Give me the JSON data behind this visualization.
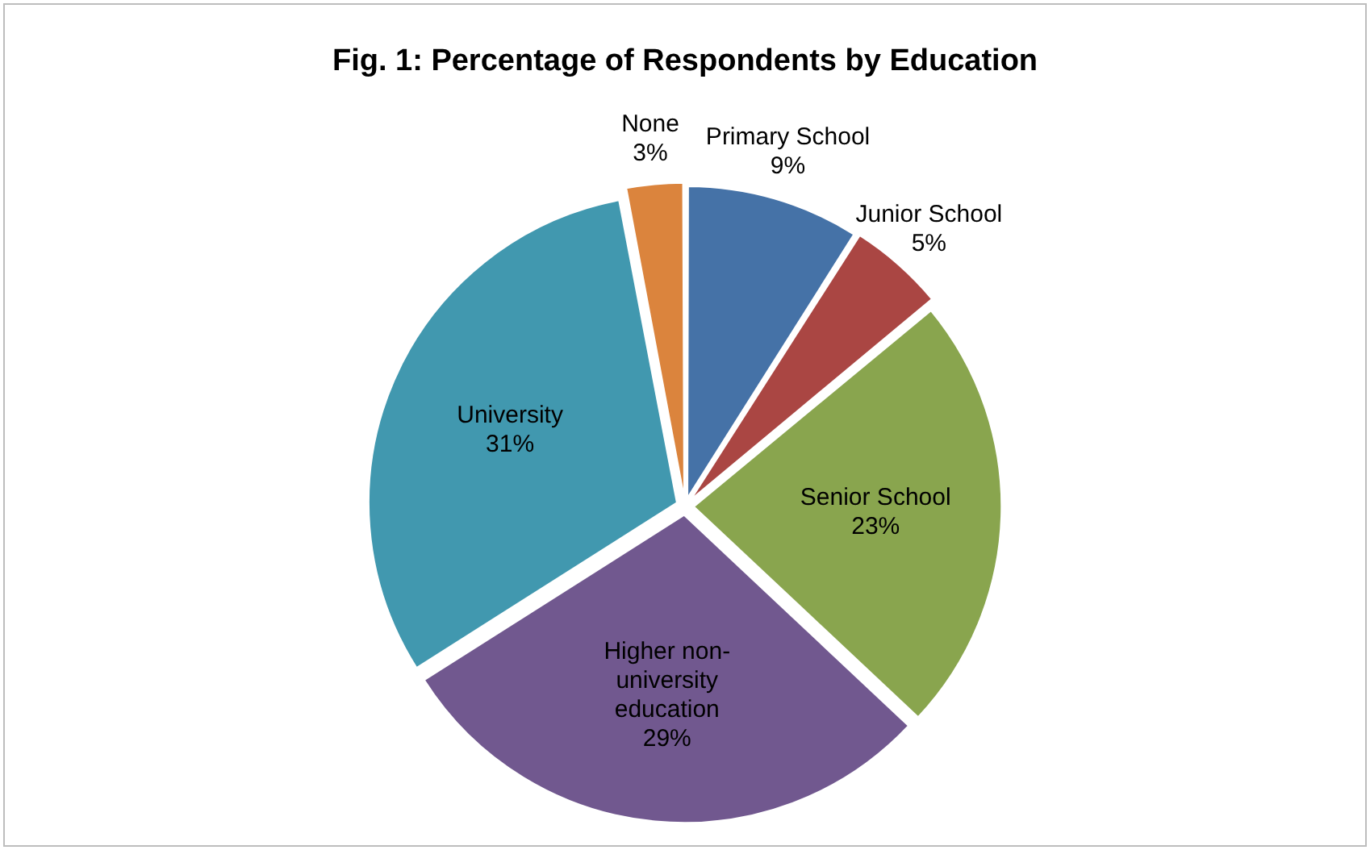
{
  "chart_data": {
    "type": "pie",
    "title": "Fig. 1: Percentage of Respondents by Education",
    "categories": [
      "Primary School",
      "Junior School",
      "Senior School",
      "Higher non-university education",
      "University",
      "None"
    ],
    "values": [
      9,
      5,
      23,
      29,
      31,
      3
    ],
    "value_labels": [
      "9%",
      "5%",
      "23%",
      "29%",
      "31%",
      "3%"
    ],
    "colors": [
      "#4572a7",
      "#aa4643",
      "#89a54e",
      "#71588f",
      "#4198af",
      "#db843d"
    ],
    "legend": false
  }
}
